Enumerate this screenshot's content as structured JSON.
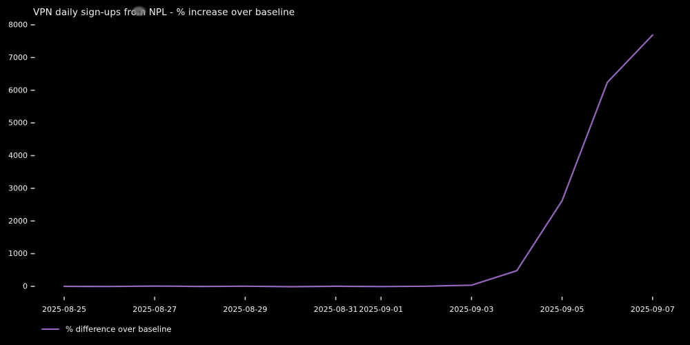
{
  "chart": {
    "title": "VPN daily sign-ups from NPL - % increase over baseline",
    "legend_label": "% difference over baseline"
  },
  "chart_data": {
    "type": "line",
    "title": "VPN daily sign-ups from NPL - % increase over baseline",
    "x": [
      "2025-08-25",
      "2025-08-26",
      "2025-08-27",
      "2025-08-28",
      "2025-08-29",
      "2025-08-30",
      "2025-08-31",
      "2025-09-01",
      "2025-09-02",
      "2025-09-03",
      "2025-09-04",
      "2025-09-05",
      "2025-09-06",
      "2025-09-07"
    ],
    "series": [
      {
        "name": "% difference over baseline",
        "values": [
          0,
          -5,
          8,
          -3,
          5,
          -10,
          2,
          -6,
          4,
          35,
          480,
          2620,
          6240,
          7690
        ],
        "color": "#9467bd"
      }
    ],
    "x_tick_labels": [
      "2025-08-25",
      "2025-08-27",
      "2025-08-29",
      "2025-08-31",
      "2025-09-01",
      "2025-09-03",
      "2025-09-05",
      "2025-09-07"
    ],
    "x_tick_indices": [
      0,
      2,
      4,
      6,
      7,
      9,
      11,
      13
    ],
    "y_ticks": [
      0,
      1000,
      2000,
      3000,
      4000,
      5000,
      6000,
      7000,
      8000
    ],
    "ylim": [
      -395,
      8075
    ],
    "xlabel": "",
    "ylabel": "",
    "grid": false,
    "legend_position": "lower-left-below-axes",
    "background_color": "#000000",
    "text_color": "#f2f2f2",
    "tick_color": "#c8c8c8"
  }
}
